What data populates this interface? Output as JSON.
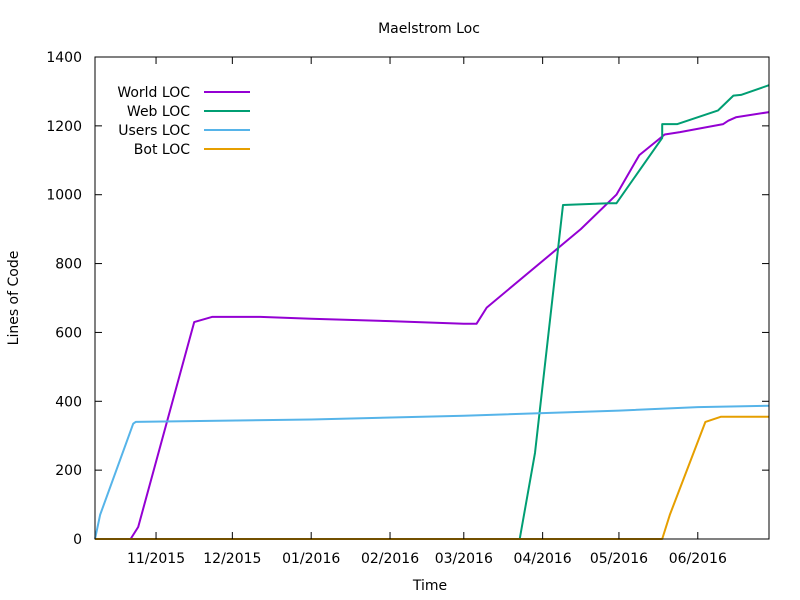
{
  "chart_data": {
    "type": "line",
    "title": "Maelstrom Loc",
    "xlabel": "Time",
    "ylabel": "Lines of Code",
    "x_axis_type": "date",
    "xlim": [
      "2015-10-08",
      "2016-06-29"
    ],
    "ylim": [
      0,
      1400
    ],
    "yticks": [
      0,
      200,
      400,
      600,
      800,
      1000,
      1200,
      1400
    ],
    "xticks": [
      {
        "date": "2015-11-01",
        "label": "11/2015"
      },
      {
        "date": "2015-12-01",
        "label": "12/2015"
      },
      {
        "date": "2016-01-01",
        "label": "01/2016"
      },
      {
        "date": "2016-02-01",
        "label": "02/2016"
      },
      {
        "date": "2016-03-01",
        "label": "03/2016"
      },
      {
        "date": "2016-04-01",
        "label": "04/2016"
      },
      {
        "date": "2016-05-01",
        "label": "05/2016"
      },
      {
        "date": "2016-06-01",
        "label": "06/2016"
      }
    ],
    "grid": false,
    "legend_position": "top-left",
    "series": [
      {
        "name": "World LOC",
        "color": "#9400d3",
        "points": [
          [
            "2015-10-22",
            0
          ],
          [
            "2015-10-25",
            35
          ],
          [
            "2015-11-16",
            630
          ],
          [
            "2015-11-23",
            645
          ],
          [
            "2015-12-12",
            645
          ],
          [
            "2016-01-01",
            640
          ],
          [
            "2016-02-01",
            633
          ],
          [
            "2016-03-01",
            625
          ],
          [
            "2016-03-06",
            625
          ],
          [
            "2016-03-10",
            672
          ],
          [
            "2016-04-16",
            900
          ],
          [
            "2016-04-30",
            1000
          ],
          [
            "2016-05-09",
            1115
          ],
          [
            "2016-05-19",
            1175
          ],
          [
            "2016-05-25",
            1182
          ],
          [
            "2016-06-11",
            1205
          ],
          [
            "2016-06-13",
            1215
          ],
          [
            "2016-06-16",
            1225
          ],
          [
            "2016-06-29",
            1240
          ]
        ]
      },
      {
        "name": "Web LOC",
        "color": "#009e73",
        "points": [
          [
            "2016-03-23",
            0
          ],
          [
            "2016-03-29",
            250
          ],
          [
            "2016-04-09",
            970
          ],
          [
            "2016-04-27",
            975
          ],
          [
            "2016-04-30",
            975
          ],
          [
            "2016-05-18",
            1165
          ],
          [
            "2016-05-18",
            1205
          ],
          [
            "2016-05-24",
            1205
          ],
          [
            "2016-06-09",
            1245
          ],
          [
            "2016-06-15",
            1288
          ],
          [
            "2016-06-18",
            1290
          ],
          [
            "2016-06-29",
            1318
          ]
        ]
      },
      {
        "name": "Users LOC",
        "color": "#56b4e9",
        "points": [
          [
            "2015-10-08",
            0
          ],
          [
            "2015-10-10",
            70
          ],
          [
            "2015-10-23",
            335
          ],
          [
            "2015-10-24",
            340
          ],
          [
            "2016-01-01",
            347
          ],
          [
            "2016-03-01",
            358
          ],
          [
            "2016-05-01",
            373
          ],
          [
            "2016-06-01",
            383
          ],
          [
            "2016-06-29",
            387
          ]
        ]
      },
      {
        "name": "Bot LOC",
        "color": "#e69f00",
        "points": [
          [
            "2015-10-08",
            0
          ],
          [
            "2016-05-18",
            0
          ],
          [
            "2016-05-21",
            70
          ],
          [
            "2016-06-04",
            340
          ],
          [
            "2016-06-10",
            355
          ],
          [
            "2016-06-29",
            355
          ]
        ]
      }
    ]
  }
}
